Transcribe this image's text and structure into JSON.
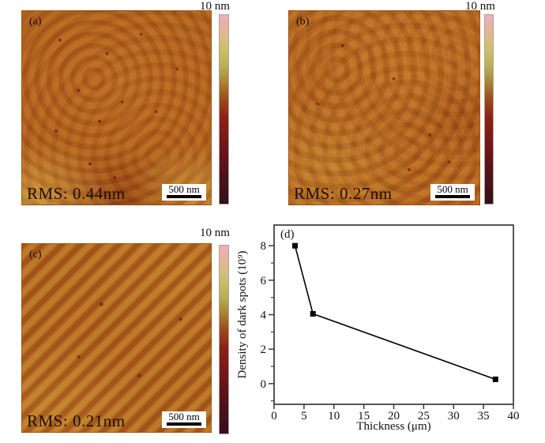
{
  "figure": {
    "panels": [
      {
        "label": "(a)",
        "rms": "RMS: 0.44nm",
        "scalebar_label": "500 nm",
        "colorbar_label": "10 nm"
      },
      {
        "label": "(b)",
        "rms": "RMS: 0.27nm",
        "scalebar_label": "500 nm",
        "colorbar_label": "10 nm"
      },
      {
        "label": "(c)",
        "rms": "RMS: 0.21nm",
        "scalebar_label": "500 nm",
        "colorbar_label": "10 nm"
      }
    ],
    "colors": {
      "afm_base": "#ae5d1d",
      "colorbar_bottom": "#340f18",
      "colorbar_mid_red": "#8e2115",
      "colorbar_olive": "#b7ad52",
      "colorbar_top_pink": "#efafb8",
      "line": "#000000"
    }
  },
  "chart_data": {
    "type": "line",
    "panel_label": "(d)",
    "x": [
      3.5,
      6.5,
      37
    ],
    "y": [
      8.0,
      4.05,
      0.25
    ],
    "title": "",
    "xlabel": "Thickness (μm)",
    "ylabel": "Density of dark spots (10⁹)",
    "xlim": [
      0,
      40
    ],
    "ylim": [
      -1.2,
      9.2
    ],
    "xticks": [
      0,
      5,
      10,
      15,
      20,
      25,
      30,
      35,
      40
    ],
    "yticks": [
      0,
      2,
      4,
      6,
      8
    ],
    "yticks_minor": [
      -1,
      1,
      3,
      5,
      7
    ],
    "marker": "square",
    "line_color": "#000000",
    "grid": false,
    "legend": null
  }
}
